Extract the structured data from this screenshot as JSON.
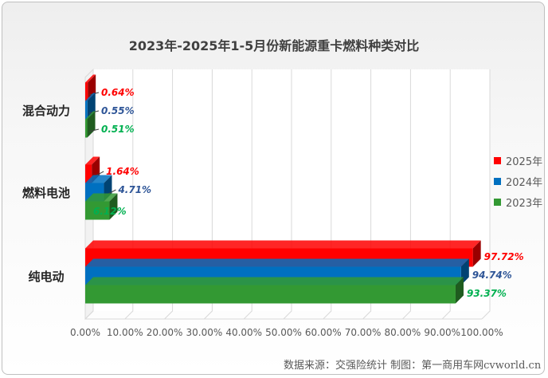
{
  "chart_data": {
    "type": "bar",
    "orientation": "horizontal",
    "title": "2023年-2025年1-5月份新能源重卡燃料种类对比",
    "categories": [
      "混合动力",
      "燃料电池",
      "纯电动"
    ],
    "series": [
      {
        "name": "2025年",
        "color": "#ff0000",
        "values": [
          0.64,
          1.64,
          97.72
        ],
        "labels": [
          "0.64%",
          "1.64%",
          "97.72%"
        ]
      },
      {
        "name": "2024年",
        "color": "#0070c0",
        "values": [
          0.55,
          4.71,
          94.74
        ],
        "labels": [
          "0.55%",
          "4.71%",
          "94.74%"
        ]
      },
      {
        "name": "2023年",
        "color": "#339933",
        "values": [
          0.51,
          6.12,
          93.37
        ],
        "labels": [
          "0.51%",
          "6.12%",
          "93.37%"
        ]
      }
    ],
    "xlim": [
      0,
      100
    ],
    "xticks": [
      "0.00%",
      "10.00%",
      "20.00%",
      "30.00%",
      "40.00%",
      "50.00%",
      "60.00%",
      "70.00%",
      "80.00%",
      "90.00%",
      "100.00%"
    ],
    "grid": true,
    "legend_position": "right"
  },
  "source_text": "数据来源：交强险统计 制图：第一商用车网cvworld.cn"
}
